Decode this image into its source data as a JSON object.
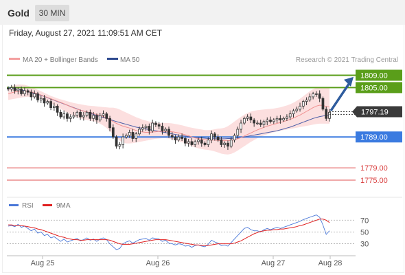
{
  "header": {
    "instrument": "Gold",
    "timeframe": "30 MIN"
  },
  "datetime": "Friday, August 27, 2021 11:09:51 AM CET",
  "legend": [
    {
      "label": "MA 20 + Bollinger Bands",
      "color": "#f4a0a0"
    },
    {
      "label": "MA 50",
      "color": "#2e4a8f"
    }
  ],
  "credit": "Research © 2021 Trading Central",
  "chart_data": [
    {
      "type": "candlestick",
      "y_range": [
        1771,
        1812
      ],
      "current_price": {
        "value": 1797.19,
        "label": "1797.19"
      },
      "levels": [
        {
          "value": 1809.0,
          "label": "1809.00",
          "kind": "resistance",
          "color": "#5a9e1a"
        },
        {
          "value": 1805.0,
          "label": "1805.00",
          "kind": "resistance",
          "color": "#5a9e1a"
        },
        {
          "value": 1789.0,
          "label": "1789.00",
          "kind": "pivot",
          "color": "#3b7be0"
        },
        {
          "value": 1779.0,
          "label": "1779.00",
          "kind": "support",
          "color": "#e05050"
        },
        {
          "value": 1775.0,
          "label": "1775.00",
          "kind": "support",
          "color": "#e05050"
        }
      ],
      "x_ticks": [
        "Aug 25",
        "Aug 26",
        "Aug 27",
        "Aug 28"
      ],
      "close": [
        1804.5,
        1805,
        1804,
        1804.5,
        1803,
        1804,
        1803.5,
        1802,
        1803,
        1801,
        1801.5,
        1800,
        1800.5,
        1798.5,
        1799,
        1797,
        1795.5,
        1796.5,
        1795,
        1795.5,
        1796,
        1797,
        1795.5,
        1796,
        1797,
        1795,
        1796,
        1794.5,
        1796,
        1796.5,
        1795,
        1792,
        1789,
        1786,
        1786.5,
        1789,
        1789.5,
        1790.5,
        1788.5,
        1790,
        1791.5,
        1792,
        1792.5,
        1791,
        1793.5,
        1793,
        1792.5,
        1791,
        1791.5,
        1789.5,
        1789,
        1788,
        1789,
        1788.5,
        1787,
        1787.5,
        1786.5,
        1787.5,
        1788,
        1787,
        1786.5,
        1788,
        1790,
        1789,
        1788,
        1786.5,
        1787,
        1786,
        1788,
        1789.5,
        1791.5,
        1793.5,
        1795,
        1795.5,
        1794.5,
        1793.5,
        1793.5,
        1793,
        1794,
        1794.5,
        1794,
        1794.5,
        1795,
        1794.5,
        1795,
        1795.5,
        1796.5,
        1797.5,
        1798,
        1799,
        1800.5,
        1801,
        1802,
        1803,
        1803,
        1801.5,
        1798,
        1795,
        1797
      ],
      "ma20": [
        1803,
        1803.3,
        1803.6,
        1803.8,
        1803.9,
        1803.9,
        1803.8,
        1803.6,
        1803.3,
        1803,
        1802.6,
        1802.2,
        1801.8,
        1801.4,
        1801,
        1800.6,
        1800.2,
        1799.8,
        1799.3,
        1798.8,
        1798.4,
        1798,
        1797.7,
        1797.4,
        1797.1,
        1796.9,
        1796.6,
        1796.3,
        1796,
        1795.6,
        1795.2,
        1794.6,
        1794,
        1793.4,
        1792.9,
        1792.5,
        1792.2,
        1791.9,
        1791.5,
        1791.1,
        1790.8,
        1790.6,
        1790.5,
        1790.5,
        1790.6,
        1790.7,
        1790.8,
        1790.8,
        1790.8,
        1790.8,
        1790.7,
        1790.5,
        1790.3,
        1790,
        1789.7,
        1789.4,
        1789,
        1788.7,
        1788.5,
        1788.3,
        1788.1,
        1788,
        1788,
        1788,
        1787.9,
        1787.8,
        1787.8,
        1787.8,
        1787.9,
        1788.1,
        1788.4,
        1788.8,
        1789.3,
        1789.8,
        1790.3,
        1790.8,
        1791.3,
        1791.7,
        1792.1,
        1792.5,
        1792.8,
        1793.1,
        1793.4,
        1793.7,
        1794,
        1794.3,
        1794.7,
        1795.1,
        1795.6,
        1796.1,
        1796.7,
        1797.3,
        1797.9,
        1798.5,
        1799,
        1799.3,
        1799.2,
        1798.9,
        1798.7
      ],
      "ma50": [
        1805,
        1804.8,
        1804.6,
        1804.4,
        1804.2,
        1804,
        1803.7,
        1803.4,
        1803.1,
        1802.8,
        1802.5,
        1802.1,
        1801.7,
        1801.3,
        1800.9,
        1800.5,
        1800.1,
        1799.7,
        1799.3,
        1798.9,
        1798.5,
        1798.1,
        1797.7,
        1797.4,
        1797.1,
        1796.7,
        1796.3,
        1796,
        1795.6,
        1795.3,
        1795,
        1794.7,
        1794.3,
        1794,
        1793.7,
        1793.4,
        1793.1,
        1792.8,
        1792.5,
        1792.2,
        1792,
        1791.8,
        1791.6,
        1791.4,
        1791.2,
        1791,
        1790.8,
        1790.6,
        1790.4,
        1790.2,
        1790,
        1789.8,
        1789.6,
        1789.4,
        1789.3,
        1789.1,
        1789,
        1788.9,
        1788.8,
        1788.7,
        1788.6,
        1788.5,
        1788.5,
        1788.4,
        1788.4,
        1788.4,
        1788.4,
        1788.5,
        1788.5,
        1788.6,
        1788.7,
        1788.8,
        1789,
        1789.2,
        1789.4,
        1789.6,
        1789.8,
        1790,
        1790.2,
        1790.4,
        1790.6,
        1790.8,
        1791,
        1791.3,
        1791.6,
        1791.9,
        1792.2,
        1792.6,
        1793,
        1793.4,
        1793.8,
        1794.2,
        1794.6,
        1795,
        1795.3,
        1795.6,
        1795.8,
        1796,
        1796.1
      ],
      "bb_upper": [
        1805,
        1805.4,
        1805.8,
        1806,
        1806,
        1805.9,
        1805.6,
        1805.2,
        1804.8,
        1804.3,
        1803.8,
        1803.3,
        1802.8,
        1802.3,
        1801.9,
        1801.5,
        1801.2,
        1800.9,
        1800.6,
        1800.3,
        1800,
        1799.8,
        1799.6,
        1799.4,
        1799.2,
        1799.1,
        1799,
        1798.9,
        1798.8,
        1798.7,
        1798.6,
        1798.5,
        1798.5,
        1798.3,
        1797.9,
        1797.4,
        1796.9,
        1796.4,
        1795.9,
        1795.4,
        1795,
        1794.6,
        1794.3,
        1794,
        1793.8,
        1793.6,
        1793.5,
        1793.5,
        1793.5,
        1793.5,
        1793.4,
        1793.2,
        1793,
        1792.8,
        1792.5,
        1792.2,
        1792,
        1791.8,
        1791.6,
        1791.4,
        1791.2,
        1791.2,
        1791.3,
        1791.5,
        1791.7,
        1791.8,
        1792,
        1792.5,
        1793.2,
        1794,
        1794.8,
        1795.5,
        1796.2,
        1796.8,
        1797.2,
        1797.5,
        1797.7,
        1797.8,
        1797.9,
        1798,
        1798.1,
        1798.2,
        1798.4,
        1798.6,
        1798.9,
        1799.2,
        1799.6,
        1800.1,
        1800.7,
        1801.4,
        1802.2,
        1803,
        1803.8,
        1804.5,
        1805,
        1805.2,
        1805.2,
        1805,
        1804.8
      ],
      "bb_lower": [
        1801,
        1801.2,
        1801.4,
        1801.6,
        1801.8,
        1801.9,
        1802,
        1802,
        1801.8,
        1801.6,
        1801.3,
        1800.9,
        1800.4,
        1799.9,
        1799.3,
        1798.7,
        1798.1,
        1797.5,
        1796.9,
        1796.3,
        1795.8,
        1795.4,
        1795,
        1794.7,
        1794.5,
        1794.3,
        1794.1,
        1793.8,
        1793.3,
        1792.7,
        1791.9,
        1790.9,
        1789.8,
        1788.7,
        1787.8,
        1787.2,
        1786.9,
        1786.9,
        1787,
        1787.2,
        1787.4,
        1787.6,
        1787.8,
        1788,
        1788.2,
        1788.4,
        1788.5,
        1788.6,
        1788.6,
        1788.5,
        1788.3,
        1788,
        1787.7,
        1787.3,
        1786.9,
        1786.5,
        1786,
        1785.6,
        1785.3,
        1785.1,
        1784.9,
        1784.8,
        1784.6,
        1784.3,
        1784,
        1783.6,
        1783.4,
        1783.3,
        1783.5,
        1784,
        1784.6,
        1785.3,
        1786,
        1786.7,
        1787.4,
        1788,
        1788.6,
        1789.1,
        1789.5,
        1789.9,
        1790.2,
        1790.5,
        1790.8,
        1791,
        1791.2,
        1791.4,
        1791.6,
        1791.8,
        1792,
        1792.2,
        1792.4,
        1792.6,
        1792.8,
        1793,
        1793.2,
        1793.3,
        1793.3,
        1793.3,
        1793.3
      ]
    },
    {
      "type": "line",
      "name": "RSI",
      "legend": [
        {
          "label": "RSI",
          "color": "#4a78d8"
        },
        {
          "label": "9MA",
          "color": "#e02020"
        }
      ],
      "y_ticks": [
        70,
        50,
        30
      ],
      "y_range": [
        12,
        82
      ],
      "rsi": [
        60,
        61,
        59,
        63,
        58,
        60,
        56,
        52,
        55,
        48,
        50,
        44,
        46,
        40,
        42,
        38,
        34,
        38,
        33,
        35,
        37,
        39,
        35,
        37,
        40,
        36,
        38,
        34,
        38,
        40,
        37,
        30,
        25,
        20,
        22,
        30,
        33,
        35,
        31,
        34,
        37,
        38,
        39,
        36,
        40,
        39,
        38,
        34,
        36,
        31,
        30,
        28,
        30,
        29,
        26,
        27,
        24,
        27,
        28,
        26,
        25,
        29,
        36,
        33,
        31,
        27,
        28,
        26,
        32,
        38,
        44,
        50,
        56,
        58,
        54,
        52,
        52,
        50,
        54,
        56,
        54,
        56,
        58,
        56,
        58,
        60,
        62,
        64,
        66,
        68,
        71,
        73,
        75,
        77,
        79,
        75,
        62,
        46,
        52
      ],
      "ma9": [
        62,
        62,
        61,
        61,
        61,
        60,
        59,
        58,
        57,
        55,
        54,
        52,
        50,
        48,
        46,
        44,
        42,
        41,
        39,
        38,
        37,
        37,
        36,
        36,
        37,
        37,
        37,
        37,
        37,
        37,
        37,
        36,
        34,
        32,
        30,
        29,
        29,
        29,
        30,
        31,
        32,
        33,
        34,
        35,
        36,
        37,
        37,
        37,
        37,
        36,
        35,
        34,
        33,
        32,
        31,
        30,
        29,
        28,
        28,
        27,
        27,
        27,
        28,
        29,
        30,
        30,
        30,
        30,
        30,
        31,
        33,
        35,
        38,
        41,
        44,
        47,
        49,
        51,
        52,
        53,
        53,
        54,
        54,
        55,
        55,
        56,
        57,
        58,
        59,
        61,
        62,
        64,
        66,
        68,
        70,
        72,
        72,
        70,
        66
      ]
    }
  ]
}
